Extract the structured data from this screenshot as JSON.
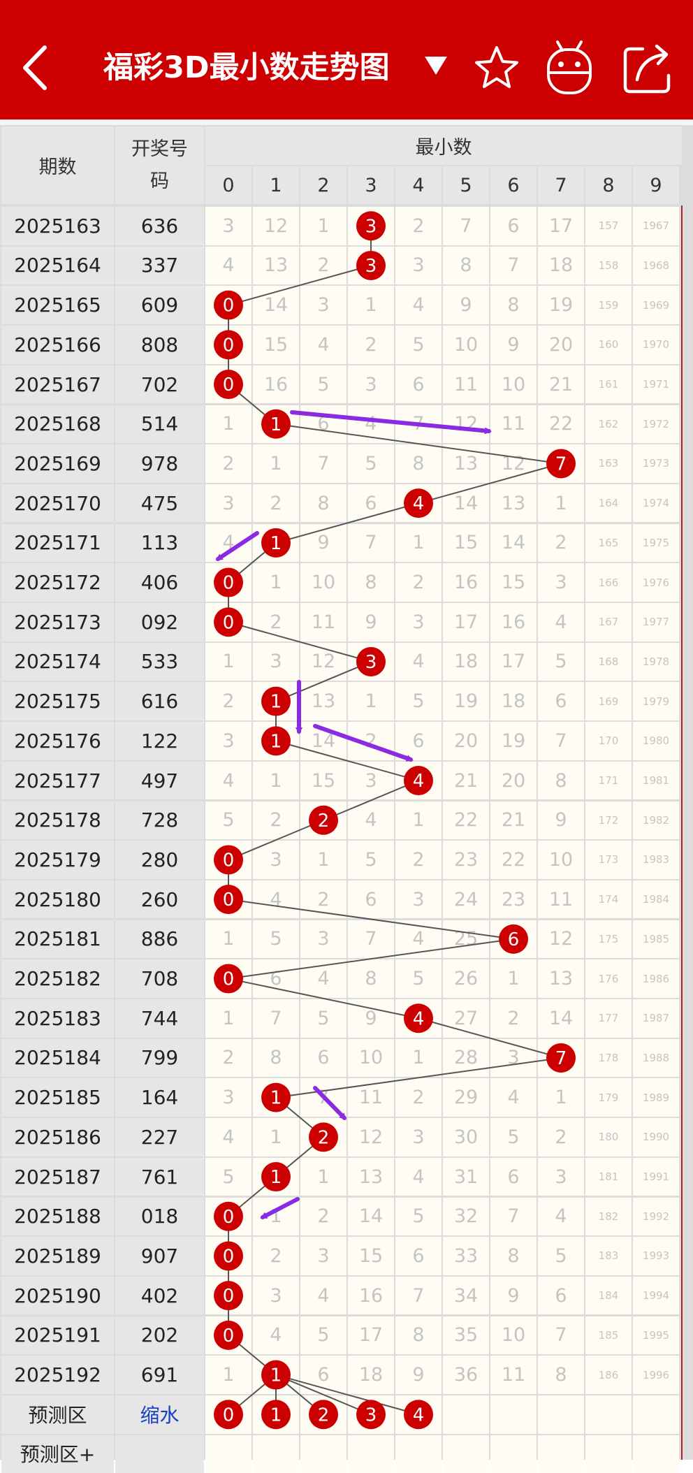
{
  "header": {
    "title": "福彩3D最小数走势图",
    "back_icon": "chevron-left-icon",
    "dropdown_icon": "triangle-down-icon",
    "favorite_icon": "star-icon",
    "robot_icon": "android-robot-icon",
    "share_icon": "share-icon"
  },
  "table": {
    "col_period": "期数",
    "col_number": "开奖号码",
    "group_label": "最小数",
    "digit_headers": [
      "0",
      "1",
      "2",
      "3",
      "4",
      "5",
      "6",
      "7",
      "8",
      "9"
    ],
    "rows": [
      {
        "period": "2025163",
        "number": "636",
        "hit": 3,
        "cells": [
          "3",
          "12",
          "1",
          "3",
          "2",
          "7",
          "6",
          "17",
          "157",
          "1967"
        ]
      },
      {
        "period": "2025164",
        "number": "337",
        "hit": 3,
        "cells": [
          "4",
          "13",
          "2",
          "3",
          "3",
          "8",
          "7",
          "18",
          "158",
          "1968"
        ]
      },
      {
        "period": "2025165",
        "number": "609",
        "hit": 0,
        "cells": [
          "0",
          "14",
          "3",
          "1",
          "4",
          "9",
          "8",
          "19",
          "159",
          "1969"
        ]
      },
      {
        "period": "2025166",
        "number": "808",
        "hit": 0,
        "cells": [
          "0",
          "15",
          "4",
          "2",
          "5",
          "10",
          "9",
          "20",
          "160",
          "1970"
        ]
      },
      {
        "period": "2025167",
        "number": "702",
        "hit": 0,
        "cells": [
          "0",
          "16",
          "5",
          "3",
          "6",
          "11",
          "10",
          "21",
          "161",
          "1971"
        ]
      },
      {
        "period": "2025168",
        "number": "514",
        "hit": 1,
        "cells": [
          "1",
          "1",
          "6",
          "4",
          "7",
          "12",
          "11",
          "22",
          "162",
          "1972"
        ]
      },
      {
        "period": "2025169",
        "number": "978",
        "hit": 7,
        "cells": [
          "2",
          "1",
          "7",
          "5",
          "8",
          "13",
          "12",
          "7",
          "163",
          "1973"
        ]
      },
      {
        "period": "2025170",
        "number": "475",
        "hit": 4,
        "cells": [
          "3",
          "2",
          "8",
          "6",
          "4",
          "14",
          "13",
          "1",
          "164",
          "1974"
        ]
      },
      {
        "period": "2025171",
        "number": "113",
        "hit": 1,
        "cells": [
          "4",
          "1",
          "9",
          "7",
          "1",
          "15",
          "14",
          "2",
          "165",
          "1975"
        ]
      },
      {
        "period": "2025172",
        "number": "406",
        "hit": 0,
        "cells": [
          "0",
          "1",
          "10",
          "8",
          "2",
          "16",
          "15",
          "3",
          "166",
          "1976"
        ]
      },
      {
        "period": "2025173",
        "number": "092",
        "hit": 0,
        "cells": [
          "0",
          "2",
          "11",
          "9",
          "3",
          "17",
          "16",
          "4",
          "167",
          "1977"
        ]
      },
      {
        "period": "2025174",
        "number": "533",
        "hit": 3,
        "cells": [
          "1",
          "3",
          "12",
          "3",
          "4",
          "18",
          "17",
          "5",
          "168",
          "1978"
        ]
      },
      {
        "period": "2025175",
        "number": "616",
        "hit": 1,
        "cells": [
          "2",
          "1",
          "13",
          "1",
          "5",
          "19",
          "18",
          "6",
          "169",
          "1979"
        ]
      },
      {
        "period": "2025176",
        "number": "122",
        "hit": 1,
        "cells": [
          "3",
          "1",
          "14",
          "2",
          "6",
          "20",
          "19",
          "7",
          "170",
          "1980"
        ]
      },
      {
        "period": "2025177",
        "number": "497",
        "hit": 4,
        "cells": [
          "4",
          "1",
          "15",
          "3",
          "4",
          "21",
          "20",
          "8",
          "171",
          "1981"
        ]
      },
      {
        "period": "2025178",
        "number": "728",
        "hit": 2,
        "cells": [
          "5",
          "2",
          "2",
          "4",
          "1",
          "22",
          "21",
          "9",
          "172",
          "1982"
        ]
      },
      {
        "period": "2025179",
        "number": "280",
        "hit": 0,
        "cells": [
          "0",
          "3",
          "1",
          "5",
          "2",
          "23",
          "22",
          "10",
          "173",
          "1983"
        ]
      },
      {
        "period": "2025180",
        "number": "260",
        "hit": 0,
        "cells": [
          "0",
          "4",
          "2",
          "6",
          "3",
          "24",
          "23",
          "11",
          "174",
          "1984"
        ]
      },
      {
        "period": "2025181",
        "number": "886",
        "hit": 6,
        "cells": [
          "1",
          "5",
          "3",
          "7",
          "4",
          "25",
          "6",
          "12",
          "175",
          "1985"
        ]
      },
      {
        "period": "2025182",
        "number": "708",
        "hit": 0,
        "cells": [
          "0",
          "6",
          "4",
          "8",
          "5",
          "26",
          "1",
          "13",
          "176",
          "1986"
        ]
      },
      {
        "period": "2025183",
        "number": "744",
        "hit": 4,
        "cells": [
          "1",
          "7",
          "5",
          "9",
          "4",
          "27",
          "2",
          "14",
          "177",
          "1987"
        ]
      },
      {
        "period": "2025184",
        "number": "799",
        "hit": 7,
        "cells": [
          "2",
          "8",
          "6",
          "10",
          "1",
          "28",
          "3",
          "7",
          "178",
          "1988"
        ]
      },
      {
        "period": "2025185",
        "number": "164",
        "hit": 1,
        "cells": [
          "3",
          "1",
          "7",
          "11",
          "2",
          "29",
          "4",
          "1",
          "179",
          "1989"
        ]
      },
      {
        "period": "2025186",
        "number": "227",
        "hit": 2,
        "cells": [
          "4",
          "1",
          "2",
          "12",
          "3",
          "30",
          "5",
          "2",
          "180",
          "1990"
        ]
      },
      {
        "period": "2025187",
        "number": "761",
        "hit": 1,
        "cells": [
          "5",
          "1",
          "1",
          "13",
          "4",
          "31",
          "6",
          "3",
          "181",
          "1991"
        ]
      },
      {
        "period": "2025188",
        "number": "018",
        "hit": 0,
        "cells": [
          "0",
          "1",
          "2",
          "14",
          "5",
          "32",
          "7",
          "4",
          "182",
          "1992"
        ]
      },
      {
        "period": "2025189",
        "number": "907",
        "hit": 0,
        "cells": [
          "0",
          "2",
          "3",
          "15",
          "6",
          "33",
          "8",
          "5",
          "183",
          "1993"
        ]
      },
      {
        "period": "2025190",
        "number": "402",
        "hit": 0,
        "cells": [
          "0",
          "3",
          "4",
          "16",
          "7",
          "34",
          "9",
          "6",
          "184",
          "1994"
        ]
      },
      {
        "period": "2025191",
        "number": "202",
        "hit": 0,
        "cells": [
          "0",
          "4",
          "5",
          "17",
          "8",
          "35",
          "10",
          "7",
          "185",
          "1995"
        ]
      },
      {
        "period": "2025192",
        "number": "691",
        "hit": 1,
        "cells": [
          "1",
          "1",
          "6",
          "18",
          "9",
          "36",
          "11",
          "8",
          "186",
          "1996"
        ]
      }
    ],
    "predict_label": "预测区",
    "predict_action": "缩水",
    "predict_balls": [
      "0",
      "1",
      "2",
      "3",
      "4"
    ],
    "predict_plus_label": "预测区+"
  },
  "colors": {
    "header_bg": "#cc0000",
    "ball": "#cc0000",
    "line": "#555555",
    "arrow": "#8a2be2",
    "miss_text": "#c4c4c4",
    "cell_bg": "#fffdf3"
  }
}
